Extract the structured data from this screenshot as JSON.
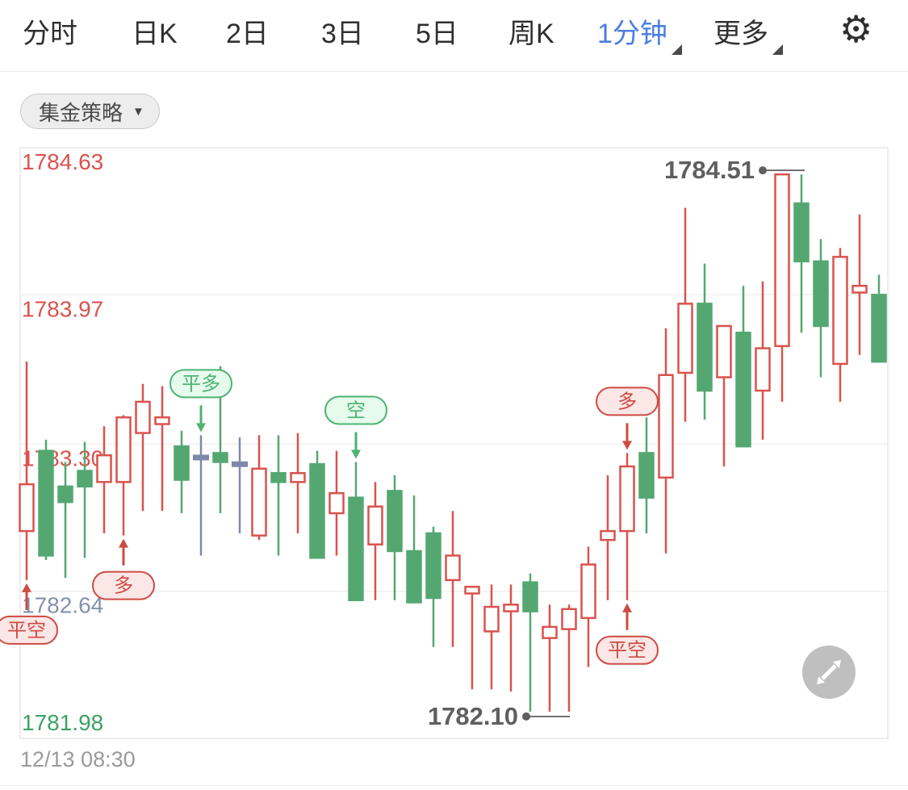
{
  "nav": {
    "items": [
      {
        "label": "分时",
        "active": false,
        "dropdown": false
      },
      {
        "label": "日K",
        "active": false,
        "dropdown": false
      },
      {
        "label": "2日",
        "active": false,
        "dropdown": false
      },
      {
        "label": "3日",
        "active": false,
        "dropdown": false
      },
      {
        "label": "5日",
        "active": false,
        "dropdown": false
      },
      {
        "label": "周K",
        "active": false,
        "dropdown": false
      },
      {
        "label": "1分钟",
        "active": true,
        "dropdown": true
      },
      {
        "label": "更多",
        "active": false,
        "dropdown": true
      }
    ],
    "settings_icon": "gear-icon"
  },
  "strategy_button": {
    "label": "集金策略",
    "icon": "chevron-down-icon"
  },
  "timestamp": "12/13 08:30",
  "colors": {
    "up": "#d9534e",
    "down": "#54a771",
    "neutral": "#7e89a9",
    "nav_active": "#4a7de0",
    "grid": "#f0f0f0",
    "border": "#e7e7e7",
    "axis_red": "#d9534e",
    "axis_blue": "#8591ac",
    "axis_green": "#3da263",
    "marker": "#5f5f5f",
    "badge_green_bg": "#e6fbec",
    "badge_green_fg": "#4cb373",
    "badge_red_bg": "#fbe7e6",
    "badge_red_fg": "#cc4b42"
  },
  "chart_data": {
    "type": "candlestick",
    "title": "",
    "x_label": "12/13 08:30",
    "y_axis": {
      "min": 1781.98,
      "max": 1784.63,
      "labels": [
        {
          "value": "1784.63",
          "price": 1784.63,
          "color": "red"
        },
        {
          "value": "1783.97",
          "price": 1783.97,
          "color": "red"
        },
        {
          "value": "1783.30",
          "price": 1783.3,
          "color": "red"
        },
        {
          "value": "1782.64",
          "price": 1782.64,
          "color": "blue"
        },
        {
          "value": "1781.98",
          "price": 1781.98,
          "color": "green"
        }
      ],
      "gridlines": [
        1783.97,
        1783.3,
        1782.64
      ]
    },
    "high_marker": {
      "label": "1784.51",
      "value": 1784.51,
      "candle_index": 39
    },
    "low_marker": {
      "label": "1782.10",
      "value": 1782.1,
      "candle_index": 26
    },
    "signals": [
      {
        "label": "平空",
        "color": "red",
        "candle_index": 0,
        "position": "below"
      },
      {
        "label": "多",
        "color": "red",
        "candle_index": 5,
        "position": "below"
      },
      {
        "label": "平多",
        "color": "green",
        "candle_index": 9,
        "position": "above"
      },
      {
        "label": "空",
        "color": "green",
        "candle_index": 17,
        "position": "above"
      },
      {
        "label": "多",
        "color": "red",
        "candle_index": 31,
        "position": "above"
      },
      {
        "label": "平空",
        "color": "red",
        "candle_index": 31,
        "position": "below"
      }
    ],
    "candles": [
      {
        "o": 1782.91,
        "h": 1783.67,
        "l": 1782.69,
        "c": 1783.12,
        "t": "u"
      },
      {
        "o": 1783.27,
        "h": 1783.32,
        "l": 1782.78,
        "c": 1782.8,
        "t": "d"
      },
      {
        "o": 1783.11,
        "h": 1783.22,
        "l": 1782.7,
        "c": 1783.04,
        "t": "d"
      },
      {
        "o": 1783.18,
        "h": 1783.31,
        "l": 1782.79,
        "c": 1783.11,
        "t": "d"
      },
      {
        "o": 1783.13,
        "h": 1783.38,
        "l": 1782.9,
        "c": 1783.25,
        "t": "u"
      },
      {
        "o": 1783.13,
        "h": 1783.43,
        "l": 1782.89,
        "c": 1783.42,
        "t": "u"
      },
      {
        "o": 1783.35,
        "h": 1783.57,
        "l": 1783.0,
        "c": 1783.49,
        "t": "u"
      },
      {
        "o": 1783.39,
        "h": 1783.56,
        "l": 1783.0,
        "c": 1783.42,
        "t": "u"
      },
      {
        "o": 1783.29,
        "h": 1783.36,
        "l": 1782.99,
        "c": 1783.14,
        "t": "d"
      },
      {
        "o": 1783.24,
        "h": 1783.34,
        "l": 1782.8,
        "c": 1783.24,
        "t": "n"
      },
      {
        "o": 1783.26,
        "h": 1783.65,
        "l": 1782.99,
        "c": 1783.22,
        "t": "d"
      },
      {
        "o": 1783.21,
        "h": 1783.33,
        "l": 1782.9,
        "c": 1783.21,
        "t": "n"
      },
      {
        "o": 1782.89,
        "h": 1783.34,
        "l": 1782.87,
        "c": 1783.19,
        "t": "u"
      },
      {
        "o": 1783.17,
        "h": 1783.34,
        "l": 1782.8,
        "c": 1783.13,
        "t": "d"
      },
      {
        "o": 1783.13,
        "h": 1783.35,
        "l": 1782.9,
        "c": 1783.17,
        "t": "u"
      },
      {
        "o": 1783.21,
        "h": 1783.27,
        "l": 1782.79,
        "c": 1782.79,
        "t": "d"
      },
      {
        "o": 1782.99,
        "h": 1783.27,
        "l": 1782.8,
        "c": 1783.08,
        "t": "u"
      },
      {
        "o": 1783.06,
        "h": 1783.22,
        "l": 1782.6,
        "c": 1782.6,
        "t": "d"
      },
      {
        "o": 1782.85,
        "h": 1783.13,
        "l": 1782.6,
        "c": 1783.02,
        "t": "u"
      },
      {
        "o": 1783.09,
        "h": 1783.16,
        "l": 1782.6,
        "c": 1782.82,
        "t": "d"
      },
      {
        "o": 1782.82,
        "h": 1783.07,
        "l": 1782.59,
        "c": 1782.59,
        "t": "d"
      },
      {
        "o": 1782.9,
        "h": 1782.93,
        "l": 1782.39,
        "c": 1782.61,
        "t": "d"
      },
      {
        "o": 1782.69,
        "h": 1783.0,
        "l": 1782.39,
        "c": 1782.8,
        "t": "u"
      },
      {
        "o": 1782.63,
        "h": 1782.66,
        "l": 1782.2,
        "c": 1782.66,
        "t": "u"
      },
      {
        "o": 1782.46,
        "h": 1782.67,
        "l": 1782.2,
        "c": 1782.57,
        "t": "u"
      },
      {
        "o": 1782.55,
        "h": 1782.67,
        "l": 1782.19,
        "c": 1782.58,
        "t": "u"
      },
      {
        "o": 1782.68,
        "h": 1782.72,
        "l": 1782.1,
        "c": 1782.55,
        "t": "d"
      },
      {
        "o": 1782.43,
        "h": 1782.58,
        "l": 1782.1,
        "c": 1782.48,
        "t": "u"
      },
      {
        "o": 1782.47,
        "h": 1782.58,
        "l": 1782.1,
        "c": 1782.56,
        "t": "u"
      },
      {
        "o": 1782.52,
        "h": 1782.84,
        "l": 1782.3,
        "c": 1782.76,
        "t": "u"
      },
      {
        "o": 1782.87,
        "h": 1783.16,
        "l": 1782.6,
        "c": 1782.91,
        "t": "u"
      },
      {
        "o": 1782.91,
        "h": 1783.26,
        "l": 1782.6,
        "c": 1783.2,
        "t": "u"
      },
      {
        "o": 1783.26,
        "h": 1783.42,
        "l": 1782.9,
        "c": 1783.06,
        "t": "d"
      },
      {
        "o": 1783.15,
        "h": 1783.82,
        "l": 1782.81,
        "c": 1783.61,
        "t": "u"
      },
      {
        "o": 1783.62,
        "h": 1784.36,
        "l": 1783.4,
        "c": 1783.93,
        "t": "u"
      },
      {
        "o": 1783.93,
        "h": 1784.11,
        "l": 1783.41,
        "c": 1783.54,
        "t": "d"
      },
      {
        "o": 1783.6,
        "h": 1783.83,
        "l": 1783.2,
        "c": 1783.83,
        "t": "u"
      },
      {
        "o": 1783.8,
        "h": 1784.01,
        "l": 1783.29,
        "c": 1783.29,
        "t": "d"
      },
      {
        "o": 1783.54,
        "h": 1784.03,
        "l": 1783.32,
        "c": 1783.73,
        "t": "u"
      },
      {
        "o": 1783.74,
        "h": 1784.51,
        "l": 1783.49,
        "c": 1784.51,
        "t": "u"
      },
      {
        "o": 1784.38,
        "h": 1784.51,
        "l": 1783.8,
        "c": 1784.12,
        "t": "d"
      },
      {
        "o": 1784.12,
        "h": 1784.22,
        "l": 1783.6,
        "c": 1783.83,
        "t": "d"
      },
      {
        "o": 1783.66,
        "h": 1784.18,
        "l": 1783.49,
        "c": 1784.14,
        "t": "u"
      },
      {
        "o": 1783.98,
        "h": 1784.33,
        "l": 1783.7,
        "c": 1784.01,
        "t": "u"
      },
      {
        "o": 1783.97,
        "h": 1784.06,
        "l": 1783.67,
        "c": 1783.67,
        "t": "d"
      }
    ]
  },
  "expand_icon": "resize-arrows-icon"
}
